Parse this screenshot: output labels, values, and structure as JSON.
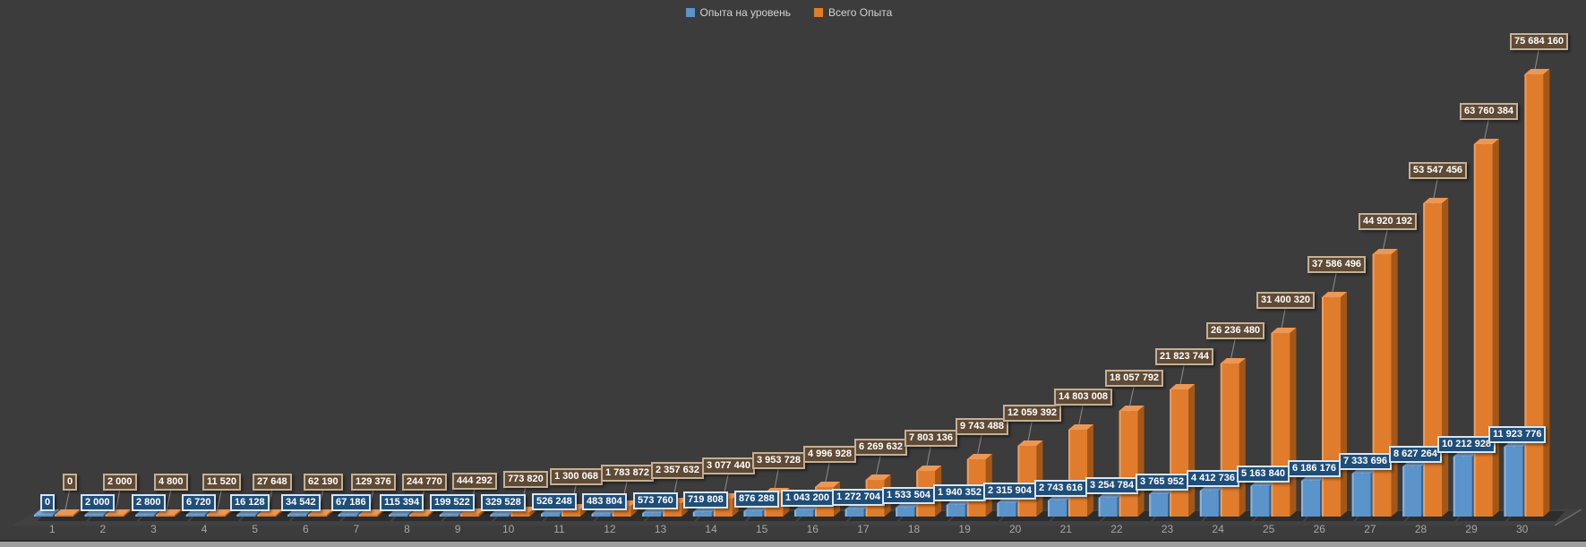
{
  "window": {
    "background_color": "#3C3C3C",
    "bottom_edge_color": "#9E9E9E"
  },
  "chart_data": {
    "type": "bar",
    "style": "3d-clustered-column",
    "title": "",
    "xlabel": "",
    "ylabel": "",
    "grid": false,
    "legend_position": "top-center",
    "ylim": [
      0,
      75684160
    ],
    "categories": [
      "1",
      "2",
      "3",
      "4",
      "5",
      "6",
      "7",
      "8",
      "9",
      "10",
      "11",
      "12",
      "13",
      "14",
      "15",
      "16",
      "17",
      "18",
      "19",
      "20",
      "21",
      "22",
      "23",
      "24",
      "25",
      "26",
      "27",
      "28",
      "29",
      "30"
    ],
    "series": [
      {
        "name": "Опыта на уровень",
        "color": "#5B94CB",
        "color_dark": "#335F8E",
        "color_light": "#7AA9D8",
        "color_highlight": "#8FBCE4",
        "label_bg": "#1F4E79",
        "label_border": "#D9E5F1",
        "label_text_color": "#FFFFFF",
        "values": [
          0,
          2000,
          2800,
          6720,
          16128,
          34542,
          67186,
          115394,
          199522,
          329528,
          526248,
          483804,
          573760,
          719808,
          876288,
          1043200,
          1272704,
          1533504,
          1940352,
          2315904,
          2743616,
          3254784,
          3765952,
          4412736,
          5163840,
          6186176,
          7333696,
          8627264,
          10212928,
          11923776
        ],
        "labels": [
          "0",
          "2 000",
          "2 800",
          "6 720",
          "16 128",
          "34 542",
          "67 186",
          "115 394",
          "199 522",
          "329 528",
          "526 248",
          "483 804",
          "573 760",
          "719 808",
          "876 288",
          "1 043 200",
          "1 272 704",
          "1 533 504",
          "1 940 352",
          "2 315 904",
          "2 743 616",
          "3 254 784",
          "3 765 952",
          "4 412 736",
          "5 163 840",
          "6 186 176",
          "7 333 696",
          "8 627 264",
          "10 212 928",
          "11 923 776"
        ]
      },
      {
        "name": "Всего Опыта",
        "color": "#E07C2B",
        "color_dark": "#A3581A",
        "color_light": "#EF9750",
        "color_highlight": "#F2A264",
        "label_bg": "#5F4A36",
        "label_border": "#C3B096",
        "label_text_color": "#FFFFFF",
        "values": [
          0,
          2000,
          4800,
          11520,
          27648,
          62190,
          129376,
          244770,
          444292,
          773820,
          1300068,
          1783872,
          2357632,
          3077440,
          3953728,
          4996928,
          6269632,
          7803136,
          9743488,
          12059392,
          14803008,
          18057792,
          21823744,
          26236480,
          31400320,
          37586496,
          44920192,
          53547456,
          63760384,
          75684160
        ],
        "labels": [
          "0",
          "2 000",
          "4 800",
          "11 520",
          "27 648",
          "62 190",
          "129 376",
          "244 770",
          "444 292",
          "773 820",
          "1 300 068",
          "1 783 872",
          "2 357 632",
          "3 077 440",
          "3 953 728",
          "4 996 928",
          "6 269 632",
          "7 803 136",
          "9 743 488",
          "12 059 392",
          "14 803 008",
          "18 057 792",
          "21 823 744",
          "26 236 480",
          "31 400 320",
          "37 586 496",
          "44 920 192",
          "53 547 456",
          "63 760 384",
          "75 684 160"
        ],
        "leader_line_color": "#A9A9A9"
      }
    ],
    "x_axis_text_color": "#A6A6A6",
    "legend_text_color": "#D2D2D2"
  }
}
